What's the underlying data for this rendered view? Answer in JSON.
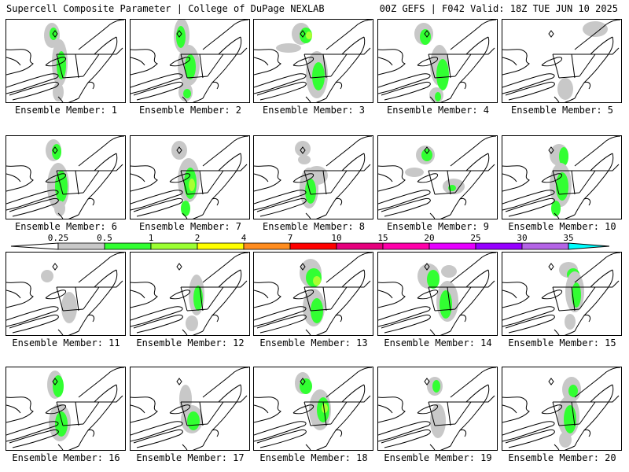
{
  "header": {
    "title": "Supercell Composite Parameter | College of DuPage NEXLAB",
    "run_info": "00Z GEFS | F042 Valid: 18Z TUE JUN 10 2025"
  },
  "member_label_prefix": "Ensemble Member: ",
  "members": [
    1,
    2,
    3,
    4,
    5,
    6,
    7,
    8,
    9,
    10,
    11,
    12,
    13,
    14,
    15,
    16,
    17,
    18,
    19,
    20
  ],
  "colorbar": {
    "boundaries": [
      "0.25",
      "0.5",
      "1",
      "2",
      "4",
      "7",
      "10",
      "15",
      "20",
      "25",
      "30",
      "35"
    ],
    "colors": [
      "#c8c8c8",
      "#32ff32",
      "#9bff32",
      "#ffff00",
      "#ff8c1e",
      "#ff0000",
      "#e6007d",
      "#ff00aa",
      "#e600ff",
      "#9600ff",
      "#b464e6",
      "#00ffff"
    ]
  },
  "colors": {
    "gray": "#c8c8c8",
    "green": "#32ff32",
    "lightgreen": "#aaff32"
  }
}
